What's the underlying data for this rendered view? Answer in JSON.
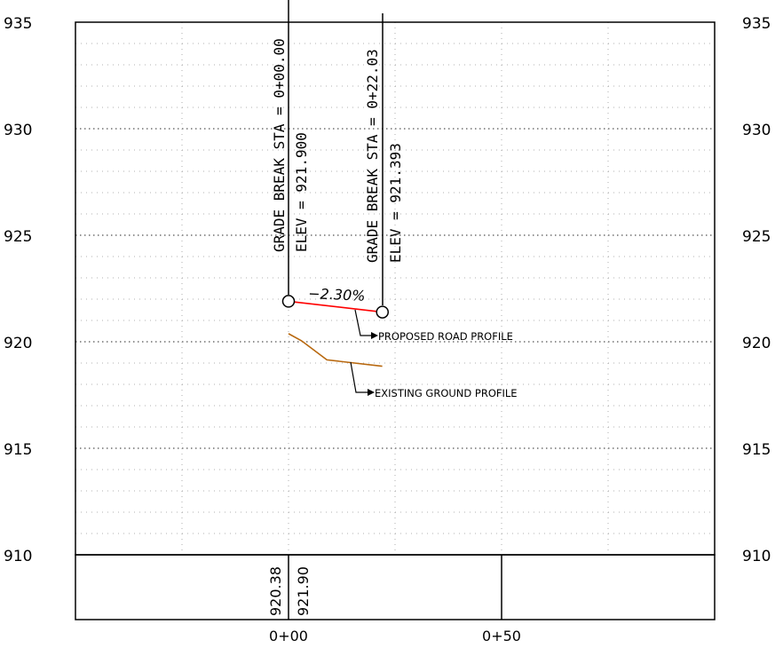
{
  "axis": {
    "y_left_ticks": [
      "935",
      "930",
      "925",
      "920",
      "915",
      "910"
    ],
    "y_right_ticks": [
      "935",
      "930",
      "925",
      "920",
      "915",
      "910"
    ],
    "x_ticks": [
      "0+00",
      "0+50"
    ]
  },
  "grade_breaks": [
    {
      "station_text": "GRADE BREAK STA = 0+00.00",
      "elev_text": "ELEV =   921.900"
    },
    {
      "station_text": "GRADE BREAK STA = 0+22.03",
      "elev_text": "ELEV =   921.393"
    }
  ],
  "slope_label": "−2.30%",
  "callouts": {
    "proposed": "PROPOSED ROAD PROFILE",
    "existing": "EXISTING GROUND PROFILE"
  },
  "band_values": {
    "existing": "920.38",
    "proposed": "921.90"
  },
  "colors": {
    "proposed": "#ff0000",
    "existing": "#b8680f",
    "grid": "#999999",
    "frame": "#000000"
  },
  "chart_data": {
    "type": "line",
    "x_unit": "station (ft)",
    "y_unit": "elevation (ft)",
    "xlim": [
      -50,
      100
    ],
    "ylim": [
      910,
      935
    ],
    "series": [
      {
        "key": "proposed",
        "points": [
          [
            0,
            921.9
          ],
          [
            22.03,
            921.393
          ]
        ]
      },
      {
        "key": "existing",
        "points": [
          [
            0,
            920.38
          ],
          [
            3,
            920.05
          ],
          [
            3.5,
            919.98
          ],
          [
            9,
            919.15
          ],
          [
            22,
            918.85
          ]
        ]
      }
    ]
  }
}
